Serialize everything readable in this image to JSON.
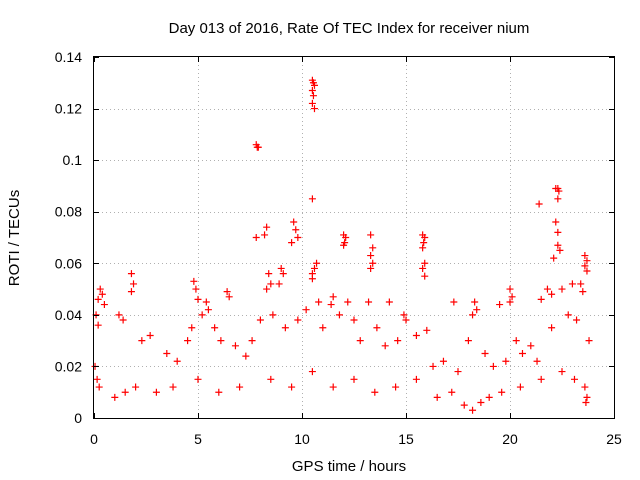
{
  "chart_data": {
    "type": "scatter",
    "title": "Day 013 of 2016, Rate Of TEC Index for receiver nium",
    "xlabel": "GPS time / hours",
    "ylabel": "ROTI / TECUs",
    "xlim": [
      0,
      25
    ],
    "ylim": [
      0,
      0.14
    ],
    "x_ticks": [
      0,
      5,
      10,
      15,
      20,
      25
    ],
    "x_tick_labels": [
      "0",
      "5",
      "10",
      "15",
      "20",
      "25"
    ],
    "y_ticks": [
      0,
      0.02,
      0.04,
      0.06,
      0.08,
      0.1,
      0.12,
      0.14
    ],
    "y_tick_labels": [
      "0",
      "0.02",
      "0.04",
      "0.06",
      "0.08",
      "0.1",
      "0.12",
      "0.14"
    ],
    "grid": true,
    "marker": "+",
    "series": [
      {
        "name": "ROTI",
        "color": "#ff0000",
        "points": [
          [
            7.8,
            0.106
          ],
          [
            7.85,
            0.105
          ],
          [
            7.9,
            0.105
          ],
          [
            10.5,
            0.131
          ],
          [
            10.55,
            0.13
          ],
          [
            10.6,
            0.129
          ],
          [
            10.5,
            0.127
          ],
          [
            10.55,
            0.125
          ],
          [
            10.5,
            0.122
          ],
          [
            10.6,
            0.12
          ],
          [
            10.5,
            0.085
          ],
          [
            22.2,
            0.089
          ],
          [
            22.3,
            0.089
          ],
          [
            22.35,
            0.088
          ],
          [
            22.3,
            0.085
          ],
          [
            21.4,
            0.083
          ],
          [
            9.6,
            0.076
          ],
          [
            9.7,
            0.073
          ],
          [
            9.8,
            0.07
          ],
          [
            9.5,
            0.068
          ],
          [
            8.3,
            0.074
          ],
          [
            8.2,
            0.071
          ],
          [
            7.8,
            0.07
          ],
          [
            12.0,
            0.071
          ],
          [
            12.1,
            0.07
          ],
          [
            12.05,
            0.068
          ],
          [
            12.0,
            0.067
          ],
          [
            13.3,
            0.071
          ],
          [
            13.4,
            0.066
          ],
          [
            13.3,
            0.063
          ],
          [
            13.4,
            0.06
          ],
          [
            13.3,
            0.058
          ],
          [
            15.8,
            0.071
          ],
          [
            15.9,
            0.07
          ],
          [
            15.85,
            0.068
          ],
          [
            15.8,
            0.066
          ],
          [
            15.9,
            0.06
          ],
          [
            15.8,
            0.058
          ],
          [
            15.9,
            0.055
          ],
          [
            22.2,
            0.076
          ],
          [
            22.3,
            0.072
          ],
          [
            22.3,
            0.067
          ],
          [
            22.4,
            0.065
          ],
          [
            22.1,
            0.062
          ],
          [
            23.6,
            0.063
          ],
          [
            23.7,
            0.061
          ],
          [
            23.6,
            0.059
          ],
          [
            23.7,
            0.057
          ],
          [
            10.7,
            0.06
          ],
          [
            10.6,
            0.058
          ],
          [
            10.5,
            0.056
          ],
          [
            10.5,
            0.054
          ],
          [
            9.0,
            0.058
          ],
          [
            9.1,
            0.056
          ],
          [
            8.9,
            0.052
          ],
          [
            8.4,
            0.056
          ],
          [
            8.5,
            0.052
          ],
          [
            8.3,
            0.05
          ],
          [
            1.8,
            0.056
          ],
          [
            1.9,
            0.052
          ],
          [
            1.8,
            0.049
          ],
          [
            4.8,
            0.053
          ],
          [
            4.9,
            0.05
          ],
          [
            5.0,
            0.046
          ],
          [
            5.4,
            0.045
          ],
          [
            0.3,
            0.05
          ],
          [
            0.4,
            0.048
          ],
          [
            0.2,
            0.046
          ],
          [
            0.5,
            0.044
          ],
          [
            6.4,
            0.049
          ],
          [
            6.5,
            0.047
          ],
          [
            11.5,
            0.047
          ],
          [
            11.4,
            0.044
          ],
          [
            12.2,
            0.045
          ],
          [
            13.2,
            0.045
          ],
          [
            14.2,
            0.045
          ],
          [
            14.9,
            0.04
          ],
          [
            15.0,
            0.038
          ],
          [
            17.3,
            0.045
          ],
          [
            18.3,
            0.045
          ],
          [
            18.4,
            0.042
          ],
          [
            18.2,
            0.04
          ],
          [
            19.5,
            0.044
          ],
          [
            20.0,
            0.05
          ],
          [
            20.1,
            0.047
          ],
          [
            20.0,
            0.045
          ],
          [
            21.5,
            0.046
          ],
          [
            21.8,
            0.05
          ],
          [
            22.0,
            0.048
          ],
          [
            22.5,
            0.05
          ],
          [
            23.0,
            0.052
          ],
          [
            23.4,
            0.052
          ],
          [
            23.5,
            0.049
          ],
          [
            0.1,
            0.04
          ],
          [
            0.2,
            0.036
          ],
          [
            1.2,
            0.04
          ],
          [
            1.4,
            0.038
          ],
          [
            2.3,
            0.03
          ],
          [
            2.7,
            0.032
          ],
          [
            3.5,
            0.025
          ],
          [
            4.0,
            0.022
          ],
          [
            4.5,
            0.03
          ],
          [
            4.7,
            0.035
          ],
          [
            5.2,
            0.04
          ],
          [
            5.5,
            0.042
          ],
          [
            5.8,
            0.035
          ],
          [
            6.1,
            0.03
          ],
          [
            6.8,
            0.028
          ],
          [
            7.3,
            0.024
          ],
          [
            7.6,
            0.03
          ],
          [
            8.0,
            0.038
          ],
          [
            8.6,
            0.04
          ],
          [
            9.2,
            0.035
          ],
          [
            9.8,
            0.038
          ],
          [
            10.2,
            0.042
          ],
          [
            10.8,
            0.045
          ],
          [
            11.0,
            0.035
          ],
          [
            11.8,
            0.04
          ],
          [
            12.5,
            0.038
          ],
          [
            12.8,
            0.03
          ],
          [
            13.6,
            0.035
          ],
          [
            14.0,
            0.028
          ],
          [
            14.6,
            0.03
          ],
          [
            15.5,
            0.032
          ],
          [
            16.0,
            0.034
          ],
          [
            16.3,
            0.02
          ],
          [
            16.8,
            0.022
          ],
          [
            17.5,
            0.018
          ],
          [
            18.0,
            0.03
          ],
          [
            18.8,
            0.025
          ],
          [
            19.2,
            0.02
          ],
          [
            19.8,
            0.022
          ],
          [
            20.3,
            0.03
          ],
          [
            20.6,
            0.025
          ],
          [
            21.0,
            0.028
          ],
          [
            21.3,
            0.022
          ],
          [
            22.0,
            0.035
          ],
          [
            22.8,
            0.04
          ],
          [
            23.2,
            0.038
          ],
          [
            23.8,
            0.03
          ],
          [
            0.05,
            0.02
          ],
          [
            0.15,
            0.015
          ],
          [
            0.25,
            0.012
          ],
          [
            1.0,
            0.008
          ],
          [
            1.5,
            0.01
          ],
          [
            2.0,
            0.012
          ],
          [
            3.0,
            0.01
          ],
          [
            3.8,
            0.012
          ],
          [
            5.0,
            0.015
          ],
          [
            6.0,
            0.01
          ],
          [
            7.0,
            0.012
          ],
          [
            8.5,
            0.015
          ],
          [
            9.5,
            0.012
          ],
          [
            10.5,
            0.018
          ],
          [
            11.5,
            0.012
          ],
          [
            12.5,
            0.015
          ],
          [
            13.5,
            0.01
          ],
          [
            14.5,
            0.012
          ],
          [
            15.5,
            0.015
          ],
          [
            16.5,
            0.008
          ],
          [
            17.2,
            0.01
          ],
          [
            17.8,
            0.005
          ],
          [
            18.2,
            0.003
          ],
          [
            18.6,
            0.006
          ],
          [
            19.0,
            0.008
          ],
          [
            19.6,
            0.01
          ],
          [
            20.5,
            0.012
          ],
          [
            21.5,
            0.015
          ],
          [
            22.5,
            0.018
          ],
          [
            23.1,
            0.015
          ],
          [
            23.6,
            0.012
          ],
          [
            23.7,
            0.008
          ],
          [
            23.65,
            0.006
          ]
        ]
      }
    ]
  }
}
